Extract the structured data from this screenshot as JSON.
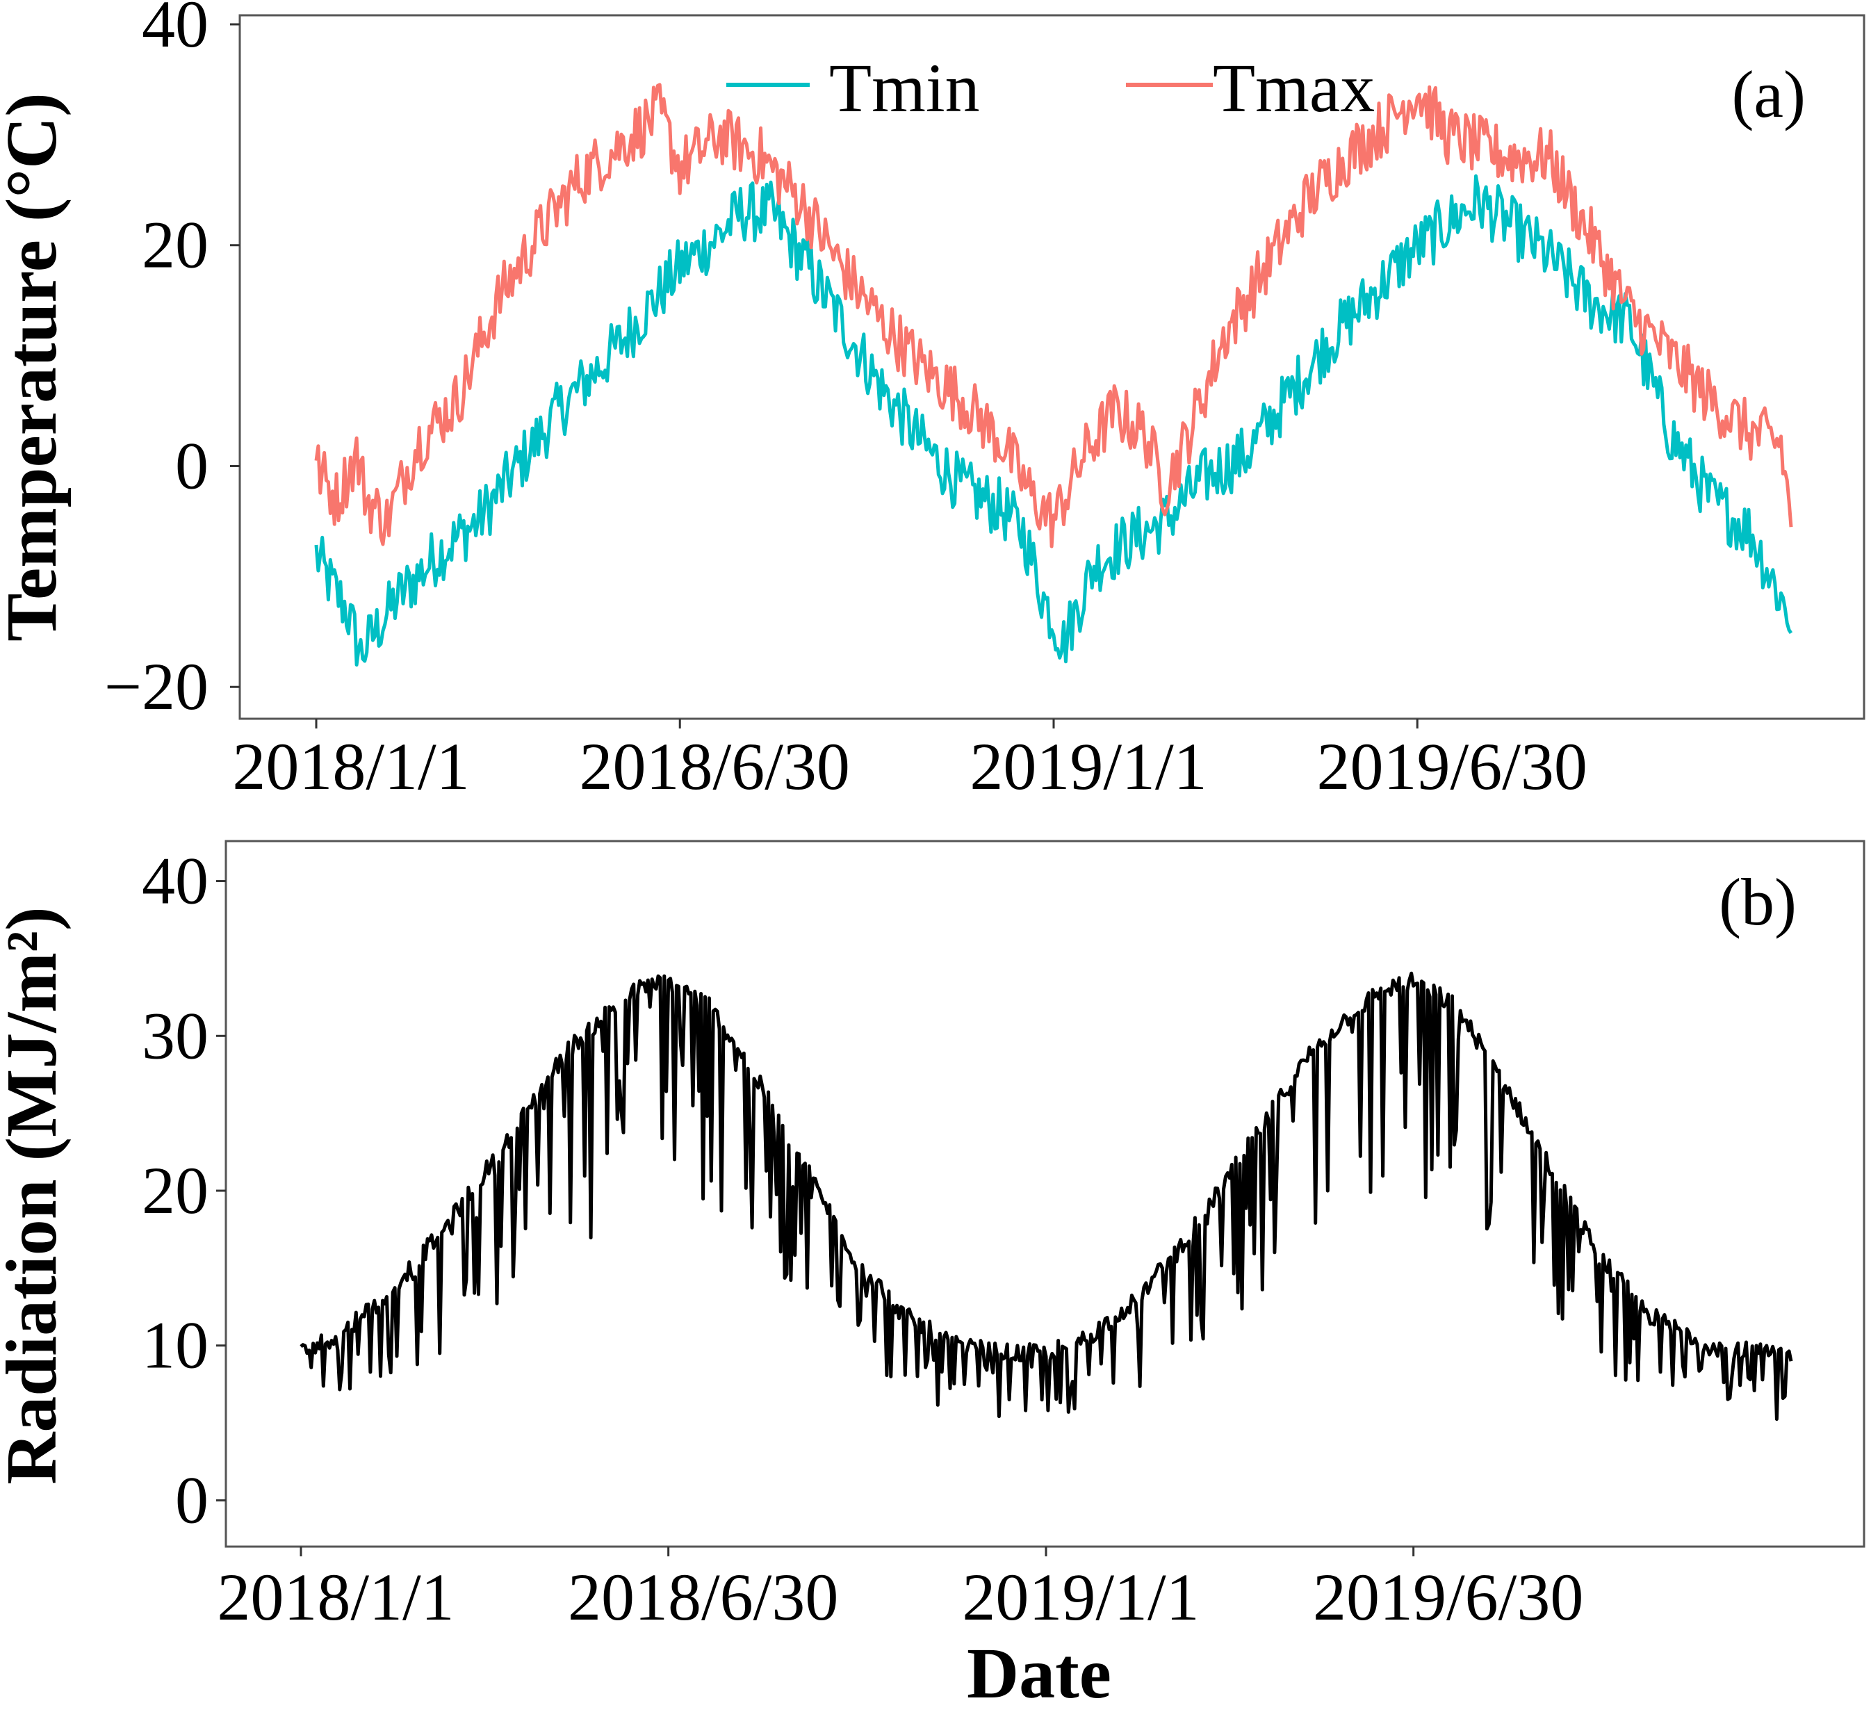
{
  "chart_data": [
    {
      "type": "line",
      "panel_label": "(a)",
      "ylabel": "Temperature  (°C)",
      "xlabel": "",
      "x_range": [
        0,
        730
      ],
      "ylim": [
        -22,
        40
      ],
      "yticks": [
        -20,
        0,
        20,
        40
      ],
      "ytick_labels": [
        "−20",
        "0",
        "20",
        "40"
      ],
      "xticks": [
        0,
        180,
        365,
        545
      ],
      "xtick_labels": [
        "2018/1/1",
        "2018/6/30",
        "2019/1/1",
        "2019/6/30"
      ],
      "legend_position": "top",
      "series": [
        {
          "name": "Tmin",
          "color": "#00BFC4",
          "keyframes": [
            [
              0,
              -8
            ],
            [
              5,
              -10
            ],
            [
              15,
              -13
            ],
            [
              22,
              -17
            ],
            [
              40,
              -12
            ],
            [
              60,
              -8
            ],
            [
              80,
              -5
            ],
            [
              100,
              0
            ],
            [
              120,
              5
            ],
            [
              150,
              11
            ],
            [
              180,
              18
            ],
            [
              200,
              21
            ],
            [
              210,
              23
            ],
            [
              225,
              23
            ],
            [
              240,
              19
            ],
            [
              260,
              13
            ],
            [
              280,
              7
            ],
            [
              300,
              2
            ],
            [
              320,
              -2
            ],
            [
              340,
              -4
            ],
            [
              350,
              -6
            ],
            [
              360,
              -12
            ],
            [
              370,
              -16
            ],
            [
              385,
              -9
            ],
            [
              400,
              -7
            ],
            [
              420,
              -5
            ],
            [
              440,
              -1
            ],
            [
              460,
              1
            ],
            [
              480,
              6
            ],
            [
              500,
              11
            ],
            [
              520,
              15
            ],
            [
              540,
              19
            ],
            [
              560,
              22
            ],
            [
              575,
              24
            ],
            [
              590,
              22
            ],
            [
              610,
              19
            ],
            [
              630,
              15
            ],
            [
              650,
              13
            ],
            [
              670,
              3
            ],
            [
              690,
              -3
            ],
            [
              710,
              -6
            ],
            [
              730,
              -14
            ]
          ]
        },
        {
          "name": "Tmax",
          "color": "#F8766D",
          "keyframes": [
            [
              0,
              0
            ],
            [
              10,
              -3
            ],
            [
              20,
              1
            ],
            [
              25,
              -3
            ],
            [
              35,
              -5
            ],
            [
              50,
              2
            ],
            [
              70,
              6
            ],
            [
              90,
              15
            ],
            [
              110,
              21
            ],
            [
              130,
              26
            ],
            [
              150,
              29
            ],
            [
              170,
              32
            ],
            [
              180,
              27
            ],
            [
              200,
              30
            ],
            [
              220,
              28
            ],
            [
              240,
              24
            ],
            [
              260,
              18
            ],
            [
              280,
              13
            ],
            [
              300,
              9
            ],
            [
              320,
              6
            ],
            [
              340,
              2
            ],
            [
              355,
              -3
            ],
            [
              365,
              -5
            ],
            [
              380,
              1
            ],
            [
              395,
              5
            ],
            [
              410,
              3
            ],
            [
              420,
              -2
            ],
            [
              430,
              2
            ],
            [
              450,
              12
            ],
            [
              470,
              18
            ],
            [
              490,
              24
            ],
            [
              510,
              28
            ],
            [
              530,
              31
            ],
            [
              545,
              34
            ],
            [
              560,
              30
            ],
            [
              575,
              29
            ],
            [
              590,
              28
            ],
            [
              610,
              28
            ],
            [
              630,
              21
            ],
            [
              650,
              14
            ],
            [
              670,
              10
            ],
            [
              690,
              6
            ],
            [
              710,
              3
            ],
            [
              725,
              2
            ],
            [
              730,
              -5
            ]
          ]
        }
      ]
    },
    {
      "type": "line",
      "panel_label": "(b)",
      "ylabel": "Radiation (MJ/m²)",
      "xlabel": "Date",
      "x_range": [
        0,
        730
      ],
      "ylim": [
        -2,
        42
      ],
      "yticks": [
        0,
        10,
        20,
        30,
        40
      ],
      "ytick_labels": [
        "0",
        "10",
        "20",
        "30",
        "40"
      ],
      "xticks": [
        0,
        180,
        365,
        545
      ],
      "xtick_labels": [
        "2018/1/1",
        "2018/6/30",
        "2019/1/1",
        "2019/6/30"
      ],
      "series": [
        {
          "name": "Radiation",
          "color": "#000000",
          "keyframes": [
            [
              0,
              9.5
            ],
            [
              15,
              10.5
            ],
            [
              40,
              13
            ],
            [
              70,
              17.5
            ],
            [
              100,
              23
            ],
            [
              130,
              29
            ],
            [
              150,
              31.5
            ],
            [
              165,
              33
            ],
            [
              180,
              33.5
            ],
            [
              200,
              32
            ],
            [
              220,
              28
            ],
            [
              245,
              22
            ],
            [
              270,
              16
            ],
            [
              295,
              12
            ],
            [
              320,
              10
            ],
            [
              345,
              9.5
            ],
            [
              365,
              9.5
            ],
            [
              385,
              10.5
            ],
            [
              410,
              13
            ],
            [
              440,
              18
            ],
            [
              465,
              23
            ],
            [
              495,
              29
            ],
            [
              515,
              31.5
            ],
            [
              530,
              33
            ],
            [
              545,
              33.5
            ],
            [
              565,
              32
            ],
            [
              585,
              28
            ],
            [
              610,
              22
            ],
            [
              635,
              16
            ],
            [
              660,
              12
            ],
            [
              690,
              10
            ],
            [
              715,
              9.5
            ],
            [
              730,
              9.5
            ]
          ]
        }
      ]
    }
  ]
}
